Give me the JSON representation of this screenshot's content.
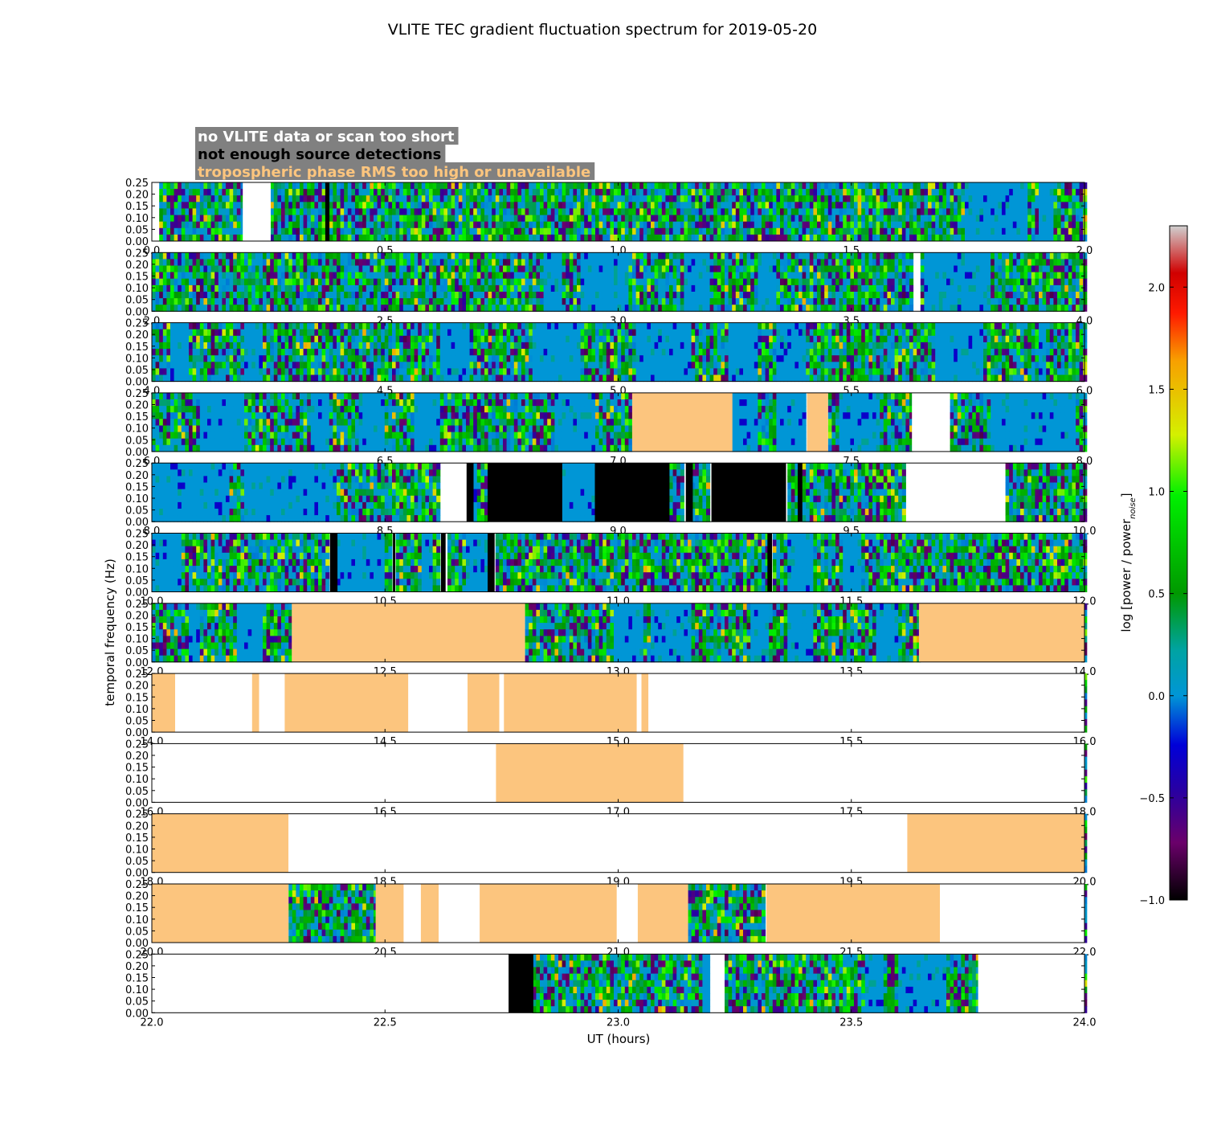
{
  "chart_data": {
    "type": "heatmap",
    "title": "VLITE TEC gradient fluctuation spectrum for 2019-05-20",
    "xlabel": "UT (hours)",
    "ylabel": "temporal frequency (Hz)",
    "ylim": [
      0,
      0.25
    ],
    "y_ticks": [
      "0.00",
      "0.05",
      "0.10",
      "0.15",
      "0.20",
      "0.25"
    ],
    "colorbar": {
      "label": "log [power / power_noise]",
      "label_main": "log [power / power",
      "label_sub": "noise",
      "label_end": "]",
      "range": [
        -1.0,
        2.3
      ],
      "ticks": [
        {
          "value": -1.0,
          "label": "−1.0"
        },
        {
          "value": -0.5,
          "label": "−0.5"
        },
        {
          "value": 0.0,
          "label": "0.0"
        },
        {
          "value": 0.5,
          "label": "0.5"
        },
        {
          "value": 1.0,
          "label": "1.0"
        },
        {
          "value": 1.5,
          "label": "1.5"
        },
        {
          "value": 2.0,
          "label": "2.0"
        }
      ]
    },
    "legend": {
      "placement": "top-left",
      "background": "#808080",
      "entries": [
        {
          "label": "no VLITE data or scan too short",
          "color": "#ffffff",
          "meaning": "white"
        },
        {
          "label": "not enough source detections",
          "color": "#000000",
          "meaning": "black"
        },
        {
          "label": "tropospheric phase RMS too high or unavailable",
          "color": "#fcc57e",
          "meaning": "orange"
        }
      ]
    },
    "colors": {
      "white": "#ffffff",
      "black": "#000000",
      "orange": "#fcc57e",
      "base": "#0096d6"
    },
    "panels": [
      {
        "xlim": [
          0,
          2
        ],
        "x_ticks": [
          "0.0",
          "0.5",
          "1.0",
          "1.5",
          "2.0"
        ],
        "flags": [
          [
            0,
            0.015,
            "white"
          ],
          [
            0.195,
            0.255,
            "white"
          ],
          [
            0.372,
            0.381,
            "black"
          ]
        ],
        "quiet": [
          [
            1.74,
            1.88
          ],
          [
            1.905,
            1.93
          ]
        ]
      },
      {
        "xlim": [
          2,
          4
        ],
        "x_ticks": [
          "2.0",
          "2.5",
          "3.0",
          "3.5",
          "4.0"
        ],
        "flags": [
          [
            3.635,
            3.645,
            "white"
          ]
        ],
        "quiet": [
          [
            2.84,
            2.88
          ],
          [
            2.92,
            3.02
          ],
          [
            3.14,
            3.2
          ],
          [
            3.3,
            3.34
          ],
          [
            3.66,
            3.8
          ]
        ]
      },
      {
        "xlim": [
          4,
          6
        ],
        "x_ticks": [
          "4.0",
          "4.5",
          "5.0",
          "5.5",
          "6.0"
        ],
        "flags": [],
        "quiet": [
          [
            4.04,
            4.08
          ],
          [
            4.2,
            4.24
          ],
          [
            4.62,
            4.68
          ],
          [
            4.82,
            4.92
          ],
          [
            5.04,
            5.16
          ],
          [
            5.24,
            5.3
          ],
          [
            5.34,
            5.4
          ],
          [
            5.68,
            5.78
          ],
          [
            5.9,
            5.92
          ]
        ]
      },
      {
        "xlim": [
          6,
          8
        ],
        "x_ticks": [
          "6.0",
          "6.5",
          "7.0",
          "7.5",
          "8.0"
        ],
        "flags": [
          [
            7.03,
            7.245,
            "orange"
          ],
          [
            7.405,
            7.45,
            "orange"
          ],
          [
            7.63,
            7.71,
            "white"
          ]
        ],
        "quiet": [
          [
            6.1,
            6.2
          ],
          [
            6.34,
            6.38
          ],
          [
            6.44,
            6.5
          ],
          [
            6.56,
            6.62
          ],
          [
            6.86,
            6.95
          ],
          [
            7.245,
            7.3
          ],
          [
            7.34,
            7.4
          ],
          [
            7.47,
            7.56
          ],
          [
            7.8,
            7.98
          ]
        ]
      },
      {
        "xlim": [
          8,
          10
        ],
        "x_ticks": [
          "8.0",
          "8.5",
          "9.0",
          "9.5",
          "10.0"
        ],
        "flags": [
          [
            8.62,
            8.675,
            "white"
          ],
          [
            8.675,
            8.69,
            "black"
          ],
          [
            8.72,
            8.88,
            "black"
          ],
          [
            8.95,
            9.11,
            "black"
          ],
          [
            9.145,
            9.16,
            "black"
          ],
          [
            9.2,
            9.36,
            "black"
          ],
          [
            9.385,
            9.395,
            "black"
          ],
          [
            9.62,
            9.83,
            "white"
          ]
        ],
        "quiet": [
          [
            8.0,
            8.17
          ],
          [
            8.2,
            8.4
          ],
          [
            8.69,
            8.7
          ],
          [
            8.88,
            8.95
          ]
        ]
      },
      {
        "xlim": [
          10,
          12
        ],
        "x_ticks": [
          "10.0",
          "10.5",
          "11.0",
          "11.5",
          "12.0"
        ],
        "flags": [
          [
            10.382,
            10.398,
            "black"
          ],
          [
            10.517,
            10.522,
            "black"
          ],
          [
            10.62,
            10.63,
            "black"
          ],
          [
            10.72,
            10.735,
            "black"
          ],
          [
            11.32,
            11.33,
            "black"
          ]
        ],
        "quiet": [
          [
            10.0,
            10.06
          ],
          [
            10.4,
            10.5
          ],
          [
            10.58,
            10.6
          ],
          [
            10.67,
            10.72
          ],
          [
            11.36,
            11.42
          ],
          [
            11.48,
            11.52
          ]
        ]
      },
      {
        "xlim": [
          12,
          14
        ],
        "x_ticks": [
          "12.0",
          "12.5",
          "13.0",
          "13.5",
          "14.0"
        ],
        "flags": [
          [
            12.3,
            12.8,
            "orange"
          ],
          [
            13.645,
            14.0,
            "orange"
          ]
        ],
        "quiet": [
          [
            12.08,
            12.1
          ],
          [
            12.18,
            12.24
          ],
          [
            12.99,
            13.05
          ],
          [
            13.07,
            13.16
          ],
          [
            13.28,
            13.32
          ],
          [
            13.36,
            13.42
          ],
          [
            13.55,
            13.6
          ]
        ]
      },
      {
        "xlim": [
          14,
          16
        ],
        "x_ticks": [
          "14.0",
          "14.5",
          "15.0",
          "15.5",
          "16.0"
        ],
        "flags": [
          [
            14.0,
            14.05,
            "orange"
          ],
          [
            14.05,
            14.215,
            "white"
          ],
          [
            14.215,
            14.23,
            "orange"
          ],
          [
            14.23,
            14.285,
            "white"
          ],
          [
            14.285,
            14.55,
            "orange"
          ],
          [
            14.55,
            14.677,
            "white"
          ],
          [
            14.677,
            14.745,
            "orange"
          ],
          [
            14.745,
            14.755,
            "white"
          ],
          [
            14.755,
            15.04,
            "orange"
          ],
          [
            15.04,
            15.05,
            "white"
          ],
          [
            15.05,
            15.065,
            "orange"
          ],
          [
            15.065,
            16.0,
            "white"
          ]
        ],
        "quiet": []
      },
      {
        "xlim": [
          16,
          18
        ],
        "x_ticks": [
          "16.0",
          "16.5",
          "17.0",
          "17.5",
          "18.0"
        ],
        "flags": [
          [
            16.0,
            16.738,
            "white"
          ],
          [
            16.738,
            17.14,
            "orange"
          ],
          [
            17.14,
            18.0,
            "white"
          ]
        ],
        "quiet": []
      },
      {
        "xlim": [
          18,
          20
        ],
        "x_ticks": [
          "18.0",
          "18.5",
          "19.0",
          "19.5",
          "20.0"
        ],
        "flags": [
          [
            18.0,
            18.293,
            "orange"
          ],
          [
            18.293,
            19.62,
            "white"
          ],
          [
            19.62,
            20.0,
            "orange"
          ]
        ],
        "quiet": []
      },
      {
        "xlim": [
          20,
          22
        ],
        "x_ticks": [
          "20.0",
          "20.5",
          "21.0",
          "21.5",
          "22.0"
        ],
        "flags": [
          [
            20.0,
            20.293,
            "orange"
          ],
          [
            20.48,
            20.54,
            "orange"
          ],
          [
            20.54,
            20.577,
            "white"
          ],
          [
            20.577,
            20.615,
            "orange"
          ],
          [
            20.615,
            20.703,
            "white"
          ],
          [
            20.703,
            20.997,
            "orange"
          ],
          [
            20.997,
            21.042,
            "white"
          ],
          [
            21.042,
            21.15,
            "orange"
          ],
          [
            21.318,
            21.69,
            "orange"
          ],
          [
            21.69,
            22.0,
            "white"
          ]
        ],
        "quiet": []
      },
      {
        "xlim": [
          22,
          24
        ],
        "x_ticks": [
          "22.0",
          "22.5",
          "23.0",
          "23.5",
          "24.0"
        ],
        "flags": [
          [
            22.0,
            22.765,
            "white"
          ],
          [
            22.765,
            22.818,
            "black"
          ],
          [
            23.2,
            23.225,
            "white"
          ],
          [
            23.772,
            24.0,
            "white"
          ]
        ],
        "quiet": [
          [
            23.18,
            23.2
          ],
          [
            23.53,
            23.57
          ],
          [
            23.6,
            23.7
          ]
        ]
      }
    ]
  }
}
